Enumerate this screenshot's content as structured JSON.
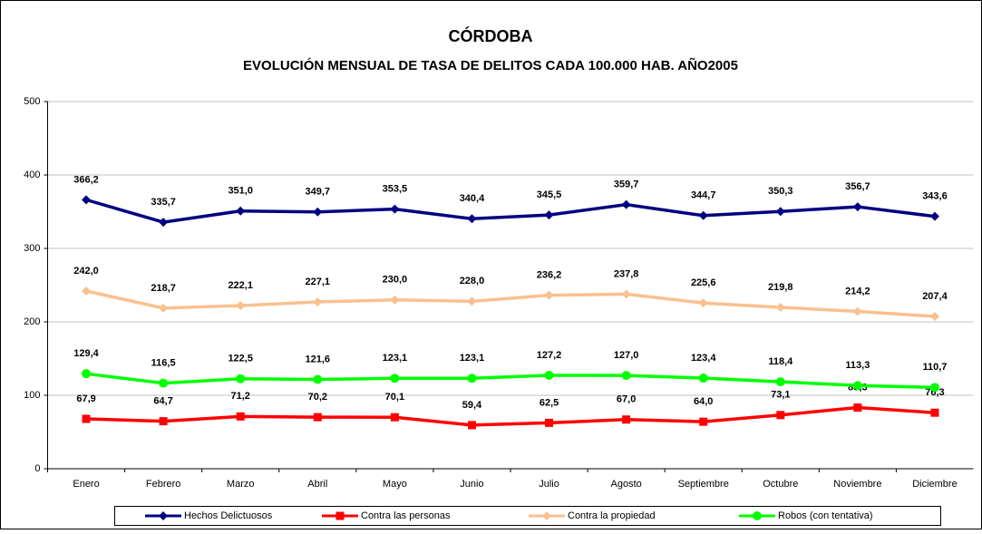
{
  "chart_data": {
    "type": "line",
    "title": "CÓRDOBA",
    "subtitle": "EVOLUCIÓN MENSUAL DE TASA DE DELITOS CADA 100.000 HAB. AÑO2005",
    "categories": [
      "Enero",
      "Febrero",
      "Marzo",
      "Abril",
      "Mayo",
      "Junio",
      "Julio",
      "Agosto",
      "Septiembre",
      "Octubre",
      "Noviembre",
      "Diciembre"
    ],
    "series": [
      {
        "name": "Hechos Delictuosos",
        "color": "#000080",
        "marker": "diamond",
        "values": [
          366.2,
          335.7,
          351.0,
          349.7,
          353.5,
          340.4,
          345.5,
          359.7,
          344.7,
          350.3,
          356.7,
          343.6
        ],
        "value_labels": [
          "366,2",
          "335,7",
          "351,0",
          "349,7",
          "353,5",
          "340,4",
          "345,5",
          "359,7",
          "344,7",
          "350,3",
          "356,7",
          "343,6"
        ]
      },
      {
        "name": "Contra las personas",
        "color": "#ff0000",
        "marker": "square",
        "values": [
          67.9,
          64.7,
          71.2,
          70.2,
          70.1,
          59.4,
          62.5,
          67.0,
          64.0,
          73.1,
          83.3,
          76.3
        ],
        "value_labels": [
          "67,9",
          "64,7",
          "71,2",
          "70,2",
          "70,1",
          "59,4",
          "62,5",
          "67,0",
          "64,0",
          "73,1",
          "83,3",
          "76,3"
        ]
      },
      {
        "name": "Contra la propiedad",
        "color": "#fac08f",
        "marker": "diamond",
        "values": [
          242.0,
          218.7,
          222.1,
          227.1,
          230.0,
          228.0,
          236.2,
          237.8,
          225.6,
          219.8,
          214.2,
          207.4
        ],
        "value_labels": [
          "242,0",
          "218,7",
          "222,1",
          "227,1",
          "230,0",
          "228,0",
          "236,2",
          "237,8",
          "225,6",
          "219,8",
          "214,2",
          "207,4"
        ]
      },
      {
        "name": "Robos (con tentativa)",
        "color": "#00ff00",
        "marker": "circle",
        "values": [
          129.4,
          116.5,
          122.5,
          121.6,
          123.1,
          123.1,
          127.2,
          127.0,
          123.4,
          118.4,
          113.3,
          110.7
        ],
        "value_labels": [
          "129,4",
          "116,5",
          "122,5",
          "121,6",
          "123,1",
          "123,1",
          "127,2",
          "127,0",
          "123,4",
          "118,4",
          "113,3",
          "110,7"
        ]
      }
    ],
    "ylim": [
      0,
      500
    ],
    "yticks": [
      0,
      100,
      200,
      300,
      400,
      500
    ],
    "grid": true,
    "legend": "bottom"
  }
}
